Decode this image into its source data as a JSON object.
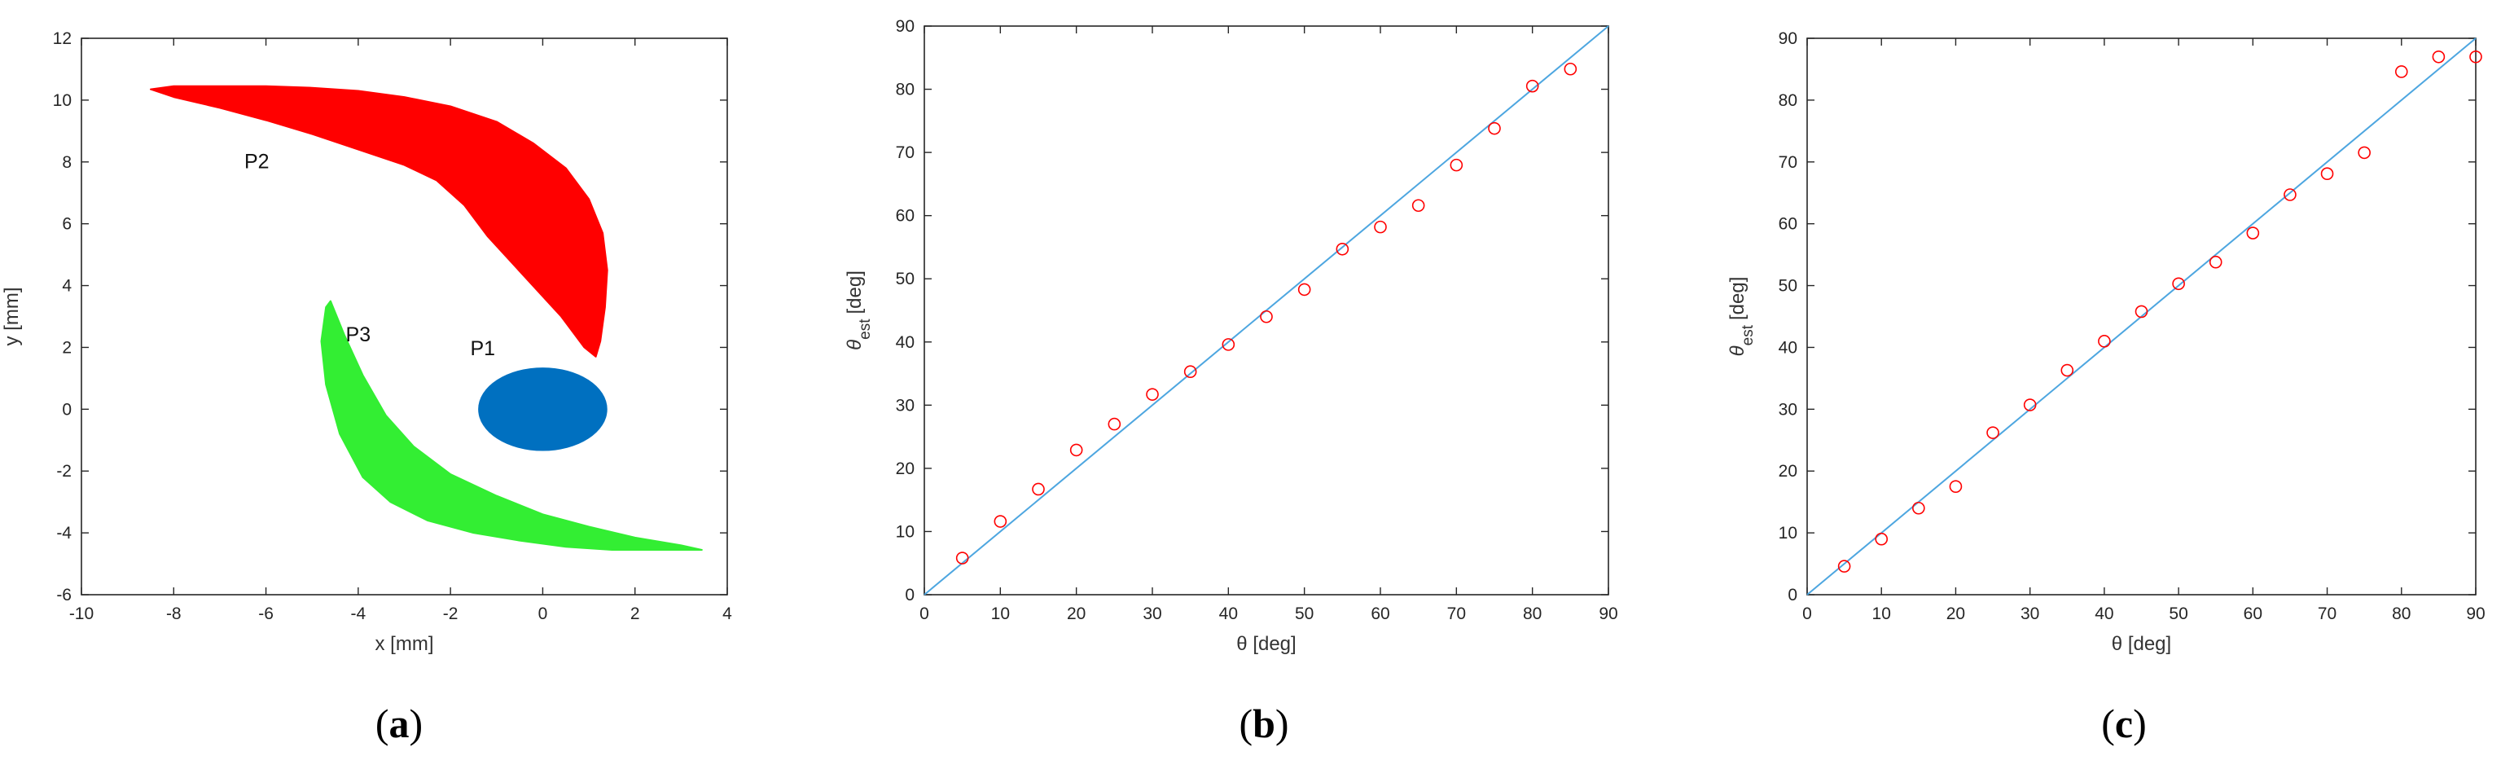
{
  "chart_data": [
    {
      "panel": "(a)",
      "panel_prefix": "(",
      "panel_letter": "a",
      "panel_suffix": ")",
      "type": "scatter",
      "xlabel": "x [mm]",
      "ylabel": "y [mm]",
      "xlim": [
        -10,
        4
      ],
      "ylim": [
        -6,
        12
      ],
      "xticks": [
        -10,
        -8,
        -6,
        -4,
        -2,
        0,
        2,
        4
      ],
      "yticks": [
        -6,
        -4,
        -2,
        0,
        2,
        4,
        6,
        8,
        10,
        12
      ],
      "grid": false,
      "regions": [
        {
          "name": "P2",
          "label": "P2",
          "label_at": [
            -6.2,
            7.8
          ],
          "color": "#ff0000",
          "outline": [
            [
              -8.5,
              10.35
            ],
            [
              -8.0,
              10.45
            ],
            [
              -7.0,
              10.45
            ],
            [
              -6.0,
              10.45
            ],
            [
              -5.0,
              10.4
            ],
            [
              -4.0,
              10.3
            ],
            [
              -3.0,
              10.1
            ],
            [
              -2.0,
              9.8
            ],
            [
              -1.0,
              9.3
            ],
            [
              -0.2,
              8.6
            ],
            [
              0.5,
              7.8
            ],
            [
              1.0,
              6.8
            ],
            [
              1.3,
              5.7
            ],
            [
              1.4,
              4.5
            ],
            [
              1.35,
              3.3
            ],
            [
              1.25,
              2.2
            ],
            [
              1.15,
              1.7
            ],
            [
              0.9,
              2.0
            ],
            [
              0.4,
              3.0
            ],
            [
              -0.4,
              4.3
            ],
            [
              -1.2,
              5.6
            ],
            [
              -1.7,
              6.6
            ],
            [
              -2.3,
              7.4
            ],
            [
              -3.0,
              7.9
            ],
            [
              -4.0,
              8.4
            ],
            [
              -5.0,
              8.9
            ],
            [
              -6.0,
              9.35
            ],
            [
              -7.0,
              9.75
            ],
            [
              -8.0,
              10.1
            ]
          ]
        },
        {
          "name": "P3",
          "label": "P3",
          "label_at": [
            -4.0,
            2.2
          ],
          "color": "#33ee33",
          "outline": [
            [
              -4.6,
              3.5
            ],
            [
              -4.3,
              2.4
            ],
            [
              -3.9,
              1.1
            ],
            [
              -3.4,
              -0.2
            ],
            [
              -2.8,
              -1.2
            ],
            [
              -2.0,
              -2.1
            ],
            [
              -1.0,
              -2.8
            ],
            [
              0.0,
              -3.4
            ],
            [
              1.0,
              -3.8
            ],
            [
              2.0,
              -4.15
            ],
            [
              3.0,
              -4.4
            ],
            [
              3.45,
              -4.55
            ],
            [
              2.5,
              -4.55
            ],
            [
              1.5,
              -4.55
            ],
            [
              0.5,
              -4.45
            ],
            [
              -0.5,
              -4.25
            ],
            [
              -1.5,
              -4.0
            ],
            [
              -2.5,
              -3.6
            ],
            [
              -3.3,
              -3.0
            ],
            [
              -3.9,
              -2.2
            ],
            [
              -4.4,
              -0.8
            ],
            [
              -4.7,
              0.8
            ],
            [
              -4.8,
              2.2
            ],
            [
              -4.7,
              3.3
            ]
          ]
        },
        {
          "name": "P1",
          "label": "P1",
          "label_at": [
            -1.3,
            1.75
          ],
          "color": "#0070c0",
          "center": [
            0.0,
            0.0
          ],
          "radius_x": 1.4,
          "radius_y": 1.35
        }
      ]
    },
    {
      "panel": "(b)",
      "panel_prefix": "(",
      "panel_letter": "b",
      "panel_suffix": ")",
      "type": "scatter",
      "xlabel": "θ [deg]",
      "ylabel_symbol": "θ",
      "ylabel_sub": "est",
      "ylabel_unit": "[deg]",
      "xlim": [
        0,
        90
      ],
      "ylim": [
        0,
        90
      ],
      "xticks": [
        0,
        10,
        20,
        30,
        40,
        50,
        60,
        70,
        80,
        90
      ],
      "yticks": [
        0,
        10,
        20,
        30,
        40,
        50,
        60,
        70,
        80,
        90
      ],
      "grid": false,
      "line": {
        "x": [
          0,
          90
        ],
        "y": [
          0,
          90
        ],
        "color": "#4da6e0"
      },
      "marker_color": "#ff0000",
      "x": [
        5,
        10,
        15,
        20,
        25,
        30,
        35,
        40,
        45,
        50,
        55,
        60,
        65,
        70,
        75,
        80,
        85
      ],
      "y": [
        5.8,
        11.6,
        16.7,
        22.9,
        27.0,
        31.7,
        35.3,
        39.6,
        44.0,
        48.3,
        54.7,
        58.2,
        61.6,
        68.0,
        73.8,
        80.5,
        83.2
      ]
    },
    {
      "panel": "(c)",
      "panel_prefix": "(",
      "panel_letter": "c",
      "panel_suffix": ")",
      "type": "scatter",
      "xlabel": "θ [deg]",
      "ylabel_symbol": "θ",
      "ylabel_sub": "est",
      "ylabel_unit": "[deg]",
      "xlim": [
        0,
        90
      ],
      "ylim": [
        0,
        90
      ],
      "xticks": [
        0,
        10,
        20,
        30,
        40,
        50,
        60,
        70,
        80,
        90
      ],
      "yticks": [
        0,
        10,
        20,
        30,
        40,
        50,
        60,
        70,
        80,
        90
      ],
      "grid": false,
      "line": {
        "x": [
          0,
          90
        ],
        "y": [
          0,
          90
        ],
        "color": "#4da6e0"
      },
      "marker_color": "#ff0000",
      "x": [
        5,
        10,
        15,
        20,
        25,
        30,
        35,
        40,
        45,
        50,
        55,
        60,
        65,
        70,
        75,
        80,
        85,
        90
      ],
      "y": [
        4.6,
        9.0,
        14.0,
        17.5,
        26.2,
        30.7,
        36.3,
        41.0,
        45.8,
        50.3,
        53.8,
        58.5,
        64.7,
        68.1,
        71.5,
        84.6,
        87.0,
        87.0
      ]
    }
  ]
}
